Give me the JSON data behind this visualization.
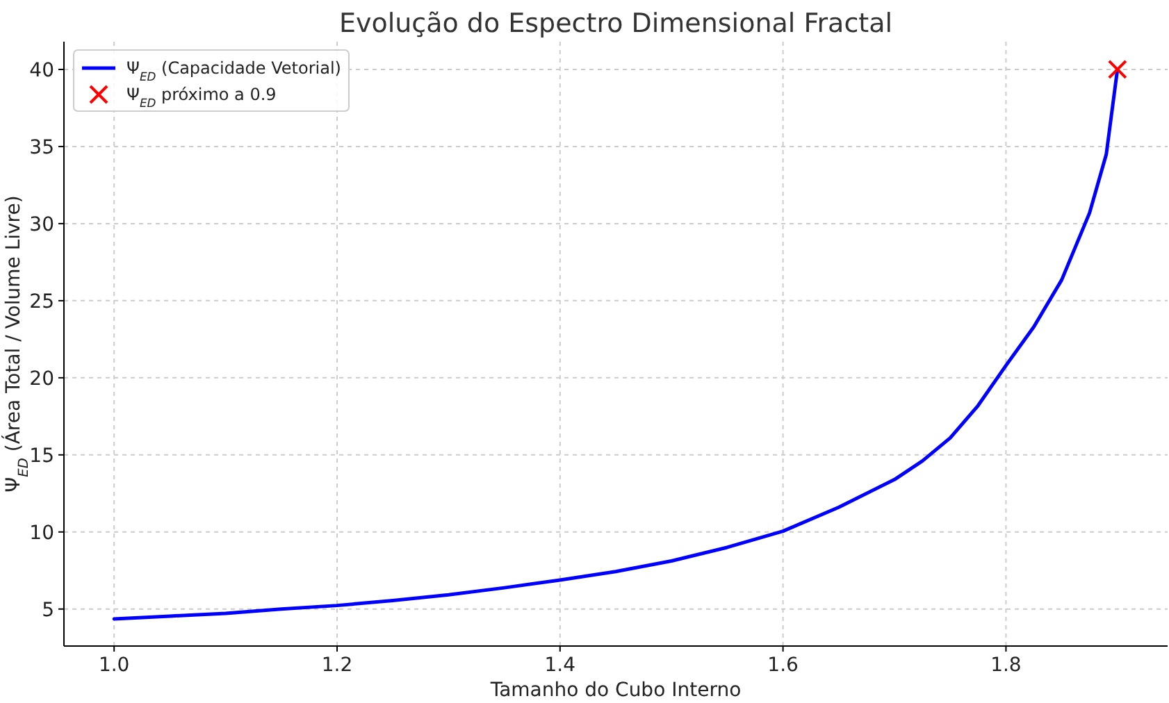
{
  "chart_data": {
    "type": "line",
    "title": "Evolução do Espectro Dimensional Fractal",
    "xlabel": "Tamanho do Cubo Interno",
    "ylabel": "Ψ$_{ED}$ (Área Total / Volume Livre)",
    "xlim": [
      0.955,
      1.945
    ],
    "ylim": [
      2.6,
      41.8
    ],
    "xticks": [
      {
        "value": 1.0,
        "label": "1.0"
      },
      {
        "value": 1.2,
        "label": "1.2"
      },
      {
        "value": 1.4,
        "label": "1.4"
      },
      {
        "value": 1.6,
        "label": "1.6"
      },
      {
        "value": 1.8,
        "label": "1.8"
      }
    ],
    "yticks": [
      5,
      10,
      15,
      20,
      25,
      30,
      35,
      40
    ],
    "grid": true,
    "legend": "top left",
    "series": [
      {
        "name": "Ψ$_{ED}$ (Capacidade Vetorial)",
        "color": "#0000ff",
        "marker": "none",
        "x": [
          1.0,
          1.05,
          1.1,
          1.15,
          1.2,
          1.25,
          1.3,
          1.35,
          1.4,
          1.45,
          1.5,
          1.55,
          1.6,
          1.65,
          1.7,
          1.725,
          1.75,
          1.775,
          1.8,
          1.825,
          1.85,
          1.875,
          1.89,
          1.9
        ],
        "values": [
          4.36,
          4.54,
          4.72,
          5.0,
          5.23,
          5.55,
          5.92,
          6.38,
          6.88,
          7.43,
          8.12,
          9.0,
          10.05,
          11.6,
          13.4,
          14.6,
          16.1,
          18.2,
          20.8,
          23.3,
          26.35,
          30.7,
          34.5,
          40
        ]
      },
      {
        "name": "Ψ$_{ED}$ próximo a 0.9",
        "type": "scatter",
        "color": "#ff0000",
        "marker": "cross",
        "x": [
          1.9
        ],
        "values": [
          40
        ]
      }
    ]
  }
}
